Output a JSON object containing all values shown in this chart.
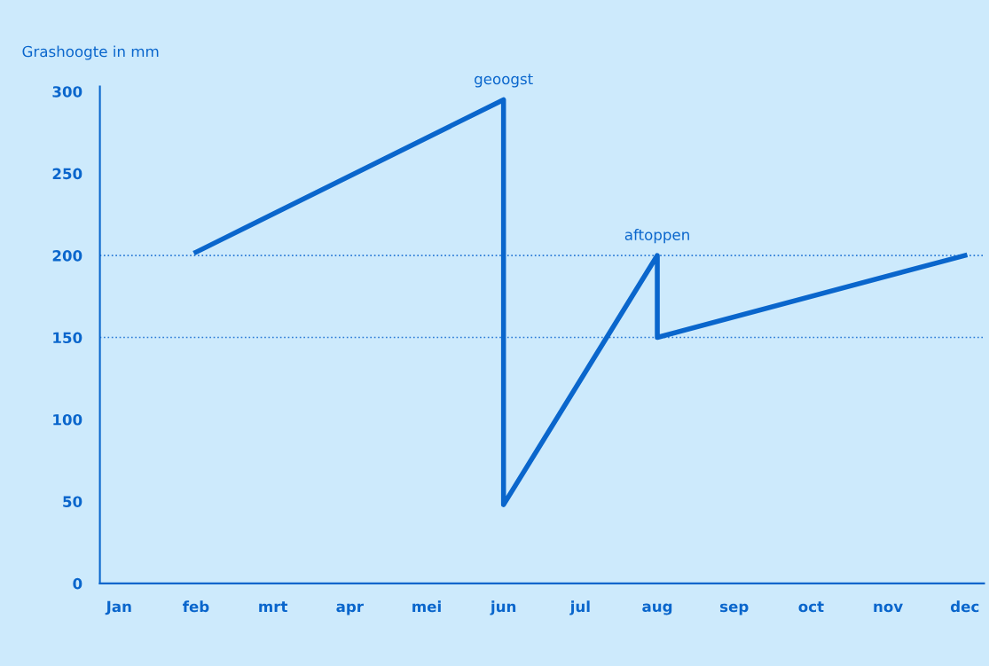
{
  "chart_data": {
    "type": "line",
    "ylabel": "Grashoogte in mm",
    "categories": [
      "Jan",
      "feb",
      "mrt",
      "apr",
      "mei",
      "jun",
      "jul",
      "aug",
      "sep",
      "oct",
      "nov",
      "dec"
    ],
    "series": [
      {
        "color": "#0a66cc",
        "x": [
          "feb",
          "jun",
          "jun",
          "aug",
          "aug",
          "dec"
        ],
        "values": [
          202,
          295,
          48,
          200,
          150,
          200
        ]
      }
    ],
    "ylim": [
      0,
      303
    ],
    "yticks": [
      0,
      50,
      100,
      150,
      200,
      250,
      300
    ],
    "ref_lines": [
      {
        "axis": "y",
        "value": 200,
        "color": "#2a7ad6",
        "line_style": "dotted"
      },
      {
        "axis": "y",
        "value": 150,
        "color": "#2a7ad6",
        "line_style": "dotted"
      }
    ],
    "annotations": [
      {
        "text": "geoogst",
        "x": "jun",
        "y": 295
      },
      {
        "text": "aftoppen",
        "x": "aug",
        "y": 200
      }
    ],
    "grid": false,
    "legend": false,
    "marker": "none",
    "line_style": "solid"
  }
}
